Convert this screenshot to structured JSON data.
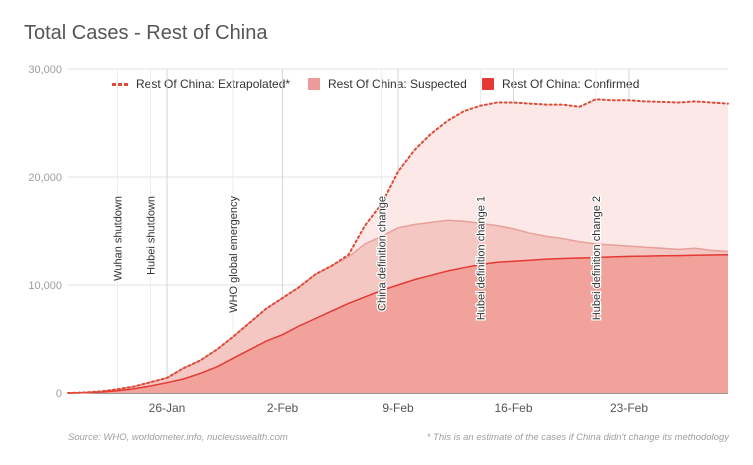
{
  "title": "Total Cases - Rest of China",
  "source": "Source: WHO, worldometer.info, nucleuswealth.com",
  "footnote": "* This is an estimate of the cases if China didn't change its methodology",
  "colors": {
    "confirmed_fill": "#f1a29a",
    "confirmed_line": "#e53935",
    "suspected_fill": "#f4c7c3",
    "extrapolated_fill": "#fce8e6",
    "extrapolated_line": "#dd4b39",
    "legend_suspected": "#ef9a9a",
    "legend_confirmed": "#e53935"
  },
  "legend": [
    {
      "label": "Rest Of China: Extrapolated*",
      "style": "dotted"
    },
    {
      "label": "Rest Of China: Suspected",
      "style": "swatch-light"
    },
    {
      "label": "Rest Of China: Confirmed",
      "style": "swatch-dark"
    }
  ],
  "chart_data": {
    "type": "area",
    "title": "Total Cases - Rest of China",
    "xlabel": "",
    "ylabel": "",
    "x_start": "2020-01-20",
    "x_end": "2020-02-29",
    "ylim": [
      0,
      30000
    ],
    "y_ticks": [
      "0",
      "10,000",
      "20,000",
      "30,000"
    ],
    "x_ticks": [
      {
        "date": "2020-01-26",
        "label": "26-Jan"
      },
      {
        "date": "2020-02-02",
        "label": "2-Feb"
      },
      {
        "date": "2020-02-09",
        "label": "9-Feb"
      },
      {
        "date": "2020-02-16",
        "label": "16-Feb"
      },
      {
        "date": "2020-02-23",
        "label": "23-Feb"
      }
    ],
    "grid": true,
    "legend_position": "top",
    "series": [
      {
        "name": "Rest Of China: Extrapolated*",
        "values": [
          [
            "2020-01-20",
            0
          ],
          [
            "2020-01-21",
            50
          ],
          [
            "2020-01-22",
            150
          ],
          [
            "2020-01-23",
            350
          ],
          [
            "2020-01-24",
            600
          ],
          [
            "2020-01-25",
            1000
          ],
          [
            "2020-01-26",
            1400
          ],
          [
            "2020-01-27",
            2300
          ],
          [
            "2020-01-28",
            3000
          ],
          [
            "2020-01-29",
            4000
          ],
          [
            "2020-01-30",
            5200
          ],
          [
            "2020-01-31",
            6500
          ],
          [
            "2020-02-01",
            7800
          ],
          [
            "2020-02-02",
            8800
          ],
          [
            "2020-02-03",
            9800
          ],
          [
            "2020-02-04",
            11000
          ],
          [
            "2020-02-05",
            11800
          ],
          [
            "2020-02-06",
            12800
          ],
          [
            "2020-02-07",
            15500
          ],
          [
            "2020-02-08",
            17500
          ],
          [
            "2020-02-09",
            20500
          ],
          [
            "2020-02-10",
            22500
          ],
          [
            "2020-02-11",
            24000
          ],
          [
            "2020-02-12",
            25200
          ],
          [
            "2020-02-13",
            26100
          ],
          [
            "2020-02-14",
            26600
          ],
          [
            "2020-02-15",
            26900
          ],
          [
            "2020-02-16",
            26900
          ],
          [
            "2020-02-17",
            26800
          ],
          [
            "2020-02-18",
            26700
          ],
          [
            "2020-02-19",
            26700
          ],
          [
            "2020-02-20",
            26500
          ],
          [
            "2020-02-21",
            27200
          ],
          [
            "2020-02-22",
            27100
          ],
          [
            "2020-02-23",
            27100
          ],
          [
            "2020-02-24",
            27000
          ],
          [
            "2020-02-25",
            26950
          ],
          [
            "2020-02-26",
            26900
          ],
          [
            "2020-02-27",
            27000
          ],
          [
            "2020-02-28",
            26900
          ],
          [
            "2020-02-29",
            26800
          ]
        ]
      },
      {
        "name": "Rest Of China: Suspected",
        "values": [
          [
            "2020-01-20",
            0
          ],
          [
            "2020-01-21",
            50
          ],
          [
            "2020-01-22",
            150
          ],
          [
            "2020-01-23",
            350
          ],
          [
            "2020-01-24",
            600
          ],
          [
            "2020-01-25",
            1000
          ],
          [
            "2020-01-26",
            1400
          ],
          [
            "2020-01-27",
            2300
          ],
          [
            "2020-01-28",
            3000
          ],
          [
            "2020-01-29",
            4000
          ],
          [
            "2020-01-30",
            5200
          ],
          [
            "2020-01-31",
            6500
          ],
          [
            "2020-02-01",
            7800
          ],
          [
            "2020-02-02",
            8800
          ],
          [
            "2020-02-03",
            9800
          ],
          [
            "2020-02-04",
            11000
          ],
          [
            "2020-02-05",
            11800
          ],
          [
            "2020-02-06",
            12600
          ],
          [
            "2020-02-07",
            13800
          ],
          [
            "2020-02-08",
            14500
          ],
          [
            "2020-02-09",
            15300
          ],
          [
            "2020-02-10",
            15600
          ],
          [
            "2020-02-11",
            15800
          ],
          [
            "2020-02-12",
            16000
          ],
          [
            "2020-02-13",
            15900
          ],
          [
            "2020-02-14",
            15700
          ],
          [
            "2020-02-15",
            15500
          ],
          [
            "2020-02-16",
            15200
          ],
          [
            "2020-02-17",
            14800
          ],
          [
            "2020-02-18",
            14500
          ],
          [
            "2020-02-19",
            14300
          ],
          [
            "2020-02-20",
            14000
          ],
          [
            "2020-02-21",
            13800
          ],
          [
            "2020-02-22",
            13700
          ],
          [
            "2020-02-23",
            13600
          ],
          [
            "2020-02-24",
            13500
          ],
          [
            "2020-02-25",
            13400
          ],
          [
            "2020-02-26",
            13300
          ],
          [
            "2020-02-27",
            13400
          ],
          [
            "2020-02-28",
            13200
          ],
          [
            "2020-02-29",
            13100
          ]
        ]
      },
      {
        "name": "Rest Of China: Confirmed",
        "values": [
          [
            "2020-01-20",
            0
          ],
          [
            "2020-01-21",
            20
          ],
          [
            "2020-01-22",
            80
          ],
          [
            "2020-01-23",
            200
          ],
          [
            "2020-01-24",
            400
          ],
          [
            "2020-01-25",
            650
          ],
          [
            "2020-01-26",
            950
          ],
          [
            "2020-01-27",
            1300
          ],
          [
            "2020-01-28",
            1800
          ],
          [
            "2020-01-29",
            2400
          ],
          [
            "2020-01-30",
            3200
          ],
          [
            "2020-01-31",
            4000
          ],
          [
            "2020-02-01",
            4800
          ],
          [
            "2020-02-02",
            5400
          ],
          [
            "2020-02-03",
            6200
          ],
          [
            "2020-02-04",
            6900
          ],
          [
            "2020-02-05",
            7600
          ],
          [
            "2020-02-06",
            8300
          ],
          [
            "2020-02-07",
            8900
          ],
          [
            "2020-02-08",
            9500
          ],
          [
            "2020-02-09",
            10000
          ],
          [
            "2020-02-10",
            10500
          ],
          [
            "2020-02-11",
            10900
          ],
          [
            "2020-02-12",
            11300
          ],
          [
            "2020-02-13",
            11600
          ],
          [
            "2020-02-14",
            11900
          ],
          [
            "2020-02-15",
            12100
          ],
          [
            "2020-02-16",
            12200
          ],
          [
            "2020-02-17",
            12300
          ],
          [
            "2020-02-18",
            12400
          ],
          [
            "2020-02-19",
            12450
          ],
          [
            "2020-02-20",
            12500
          ],
          [
            "2020-02-21",
            12550
          ],
          [
            "2020-02-22",
            12600
          ],
          [
            "2020-02-23",
            12650
          ],
          [
            "2020-02-24",
            12680
          ],
          [
            "2020-02-25",
            12700
          ],
          [
            "2020-02-26",
            12720
          ],
          [
            "2020-02-27",
            12750
          ],
          [
            "2020-02-28",
            12780
          ],
          [
            "2020-02-29",
            12800
          ]
        ]
      }
    ],
    "annotations": [
      {
        "date": "2020-01-23",
        "label": "Wuhan shutdown"
      },
      {
        "date": "2020-01-25",
        "label": "Hubei shutdown"
      },
      {
        "date": "2020-01-30",
        "label": "WHO global emergency"
      },
      {
        "date": "2020-02-08",
        "label": "China definition change"
      },
      {
        "date": "2020-02-14",
        "label": "Hubei definition change 1"
      },
      {
        "date": "2020-02-21",
        "label": "Hubei definition change 2"
      }
    ]
  }
}
